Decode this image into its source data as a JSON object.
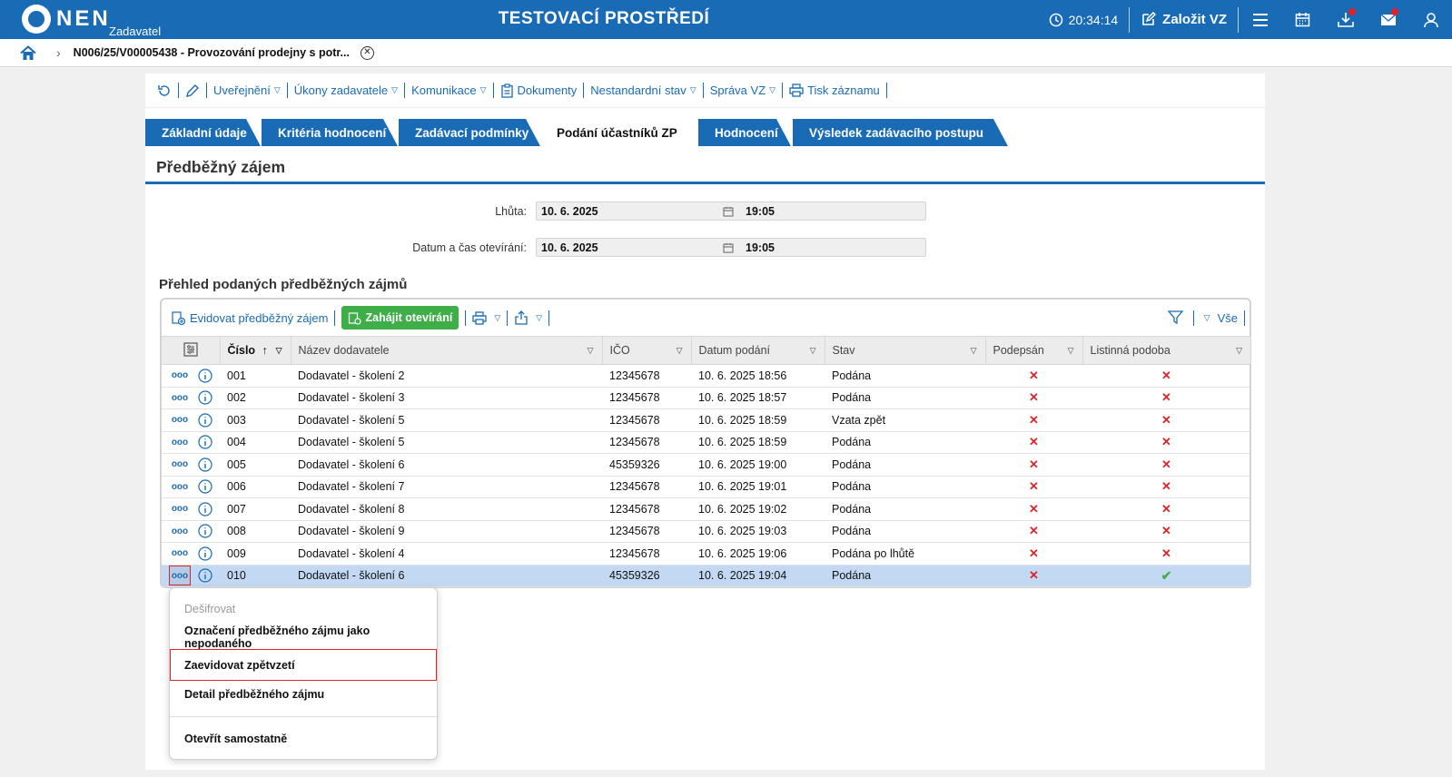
{
  "topbar": {
    "logo_text": "NEN",
    "logo_sub": "Zadavatel",
    "env_title": "TESTOVACÍ PROSTŘEDÍ",
    "time": "20:34:14",
    "create_label": "Založit VZ",
    "icons": [
      "clock-icon",
      "edit-icon",
      "menu-icon",
      "calendar-icon",
      "download-icon",
      "mail-icon",
      "user-icon"
    ],
    "accent": "#1a6bb5",
    "notify_color": "#e0202a"
  },
  "breadcrumb": {
    "text": "N006/25/V00005438 - Provozování prodejny s potr..."
  },
  "actionbar": {
    "items": [
      {
        "label": "Uveřejnění",
        "caret": true
      },
      {
        "label": "Úkony zadavatele",
        "caret": true
      },
      {
        "label": "Komunikace",
        "caret": true
      },
      {
        "label": "Dokumenty",
        "caret": false
      },
      {
        "label": "Nestandardní stav",
        "caret": true
      },
      {
        "label": "Správa VZ",
        "caret": true
      },
      {
        "label": "Tisk záznamu",
        "caret": false
      }
    ]
  },
  "tabs": [
    {
      "label": "Základní údaje",
      "active": false
    },
    {
      "label": "Kritéria hodnocení",
      "active": false
    },
    {
      "label": "Zadávací podmínky",
      "active": false
    },
    {
      "label": "Podání účastníků ZP",
      "active": true
    },
    {
      "label": "Hodnocení",
      "active": false
    },
    {
      "label": "Výsledek zadávacího postupu",
      "active": false
    }
  ],
  "section_title": "Předběžný zájem",
  "form": {
    "deadline": {
      "label": "Lhůta:",
      "date": "10. 6. 2025",
      "time": "19:05"
    },
    "opening": {
      "label": "Datum a čas otevírání:",
      "date": "10. 6. 2025",
      "time": "19:05"
    }
  },
  "overview_title": "Přehled podaných předběžných zájmů",
  "grid": {
    "toolbar": {
      "register_label": "Evidovat předběžný zájem",
      "start_label": "Zahájit otevírání",
      "filter_all_label": "Vše"
    },
    "columns": [
      "Číslo",
      "Název dodavatele",
      "IČO",
      "Datum podání",
      "Stav",
      "Podepsán",
      "Listinná podoba"
    ],
    "rows": [
      {
        "num": "001",
        "name": "Dodavatel - školení 2",
        "ico": "12345678",
        "date": "10. 6. 2025 18:56",
        "state": "Podána",
        "signed": false,
        "paper": false
      },
      {
        "num": "002",
        "name": "Dodavatel - školení 3",
        "ico": "12345678",
        "date": "10. 6. 2025 18:57",
        "state": "Podána",
        "signed": false,
        "paper": false
      },
      {
        "num": "003",
        "name": "Dodavatel - školení 5",
        "ico": "12345678",
        "date": "10. 6. 2025 18:59",
        "state": "Vzata zpět",
        "signed": false,
        "paper": false
      },
      {
        "num": "004",
        "name": "Dodavatel - školení 5",
        "ico": "12345678",
        "date": "10. 6. 2025 18:59",
        "state": "Podána",
        "signed": false,
        "paper": false
      },
      {
        "num": "005",
        "name": "Dodavatel - školení 6",
        "ico": "45359326",
        "date": "10. 6. 2025 19:00",
        "state": "Podána",
        "signed": false,
        "paper": false
      },
      {
        "num": "006",
        "name": "Dodavatel - školení 7",
        "ico": "12345678",
        "date": "10. 6. 2025 19:01",
        "state": "Podána",
        "signed": false,
        "paper": false
      },
      {
        "num": "007",
        "name": "Dodavatel - školení 8",
        "ico": "12345678",
        "date": "10. 6. 2025 19:02",
        "state": "Podána",
        "signed": false,
        "paper": false
      },
      {
        "num": "008",
        "name": "Dodavatel - školení 9",
        "ico": "12345678",
        "date": "10. 6. 2025 19:03",
        "state": "Podána",
        "signed": false,
        "paper": false
      },
      {
        "num": "009",
        "name": "Dodavatel - školení 4",
        "ico": "12345678",
        "date": "10. 6. 2025 19:06",
        "state": "Podána po lhůtě",
        "signed": false,
        "paper": false
      },
      {
        "num": "010",
        "name": "Dodavatel - školení 6",
        "ico": "45359326",
        "date": "10. 6. 2025 19:04",
        "state": "Podána",
        "signed": false,
        "paper": true,
        "selected": true
      }
    ]
  },
  "context_menu": {
    "items": [
      {
        "label": "Dešifrovat",
        "disabled": true
      },
      {
        "label": "Označení předběžného zájmu jako nepodaného",
        "disabled": false
      },
      {
        "label": "Zaevidovat zpětvzetí",
        "disabled": false,
        "highlighted": true
      },
      {
        "label": "Detail předběžného zájmu",
        "disabled": false
      },
      {
        "label": "Otevřít samostatně",
        "disabled": false
      }
    ]
  }
}
